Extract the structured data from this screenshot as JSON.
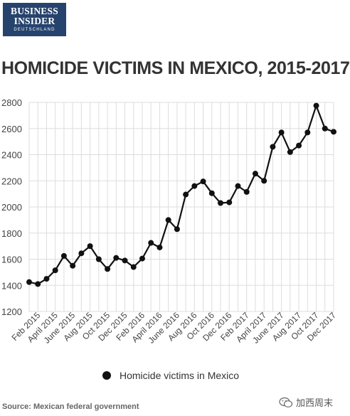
{
  "logo": {
    "line1": "BUSINESS",
    "line2": "INSIDER",
    "line3": "DEUTSCHLAND"
  },
  "title": "HOMICIDE VICTIMS IN MEXICO, 2015-2017",
  "source": "Source: Mexican federal government",
  "watermark": {
    "label": "加西周末"
  },
  "colors": {
    "logo_bg": "#26436d",
    "series": "#111111",
    "grid": "#dddddd",
    "text": "#333333"
  },
  "chart_data": {
    "type": "line",
    "title": "HOMICIDE VICTIMS IN MEXICO, 2015-2017",
    "xlabel": "",
    "ylabel": "",
    "ylim": [
      1200,
      2800
    ],
    "yticks": [
      1200,
      1400,
      1600,
      1800,
      2000,
      2200,
      2400,
      2600,
      2800
    ],
    "xtick_labels": [
      "Feb 2015",
      "April 2015",
      "June 2015",
      "Aug 2015",
      "Oct 2015",
      "Dec 2015",
      "Feb 2016",
      "April 2016",
      "June 2016",
      "Aug 2016",
      "Oct 2016",
      "Dec 2016",
      "Feb 2017",
      "April 2017",
      "June 2017",
      "Aug 2017",
      "Oct 2017",
      "Dec 2017"
    ],
    "x": [
      "Jan 2015",
      "Feb 2015",
      "Mar 2015",
      "Apr 2015",
      "May 2015",
      "Jun 2015",
      "Jul 2015",
      "Aug 2015",
      "Sep 2015",
      "Oct 2015",
      "Nov 2015",
      "Dec 2015",
      "Jan 2016",
      "Feb 2016",
      "Mar 2016",
      "Apr 2016",
      "May 2016",
      "Jun 2016",
      "Jul 2016",
      "Aug 2016",
      "Sep 2016",
      "Oct 2016",
      "Nov 2016",
      "Dec 2016",
      "Jan 2017",
      "Feb 2017",
      "Mar 2017",
      "Apr 2017",
      "May 2017",
      "Jun 2017",
      "Jul 2017",
      "Aug 2017",
      "Sep 2017",
      "Oct 2017",
      "Nov 2017",
      "Dec 2017"
    ],
    "grid": true,
    "legend": "bottom",
    "series": [
      {
        "name": "Homicide victims in Mexico",
        "values": [
          1425,
          1410,
          1450,
          1515,
          1625,
          1550,
          1645,
          1700,
          1600,
          1525,
          1610,
          1590,
          1540,
          1605,
          1725,
          1690,
          1900,
          1830,
          2095,
          2160,
          2195,
          2105,
          2030,
          2035,
          2160,
          2115,
          2255,
          2200,
          2460,
          2570,
          2420,
          2470,
          2570,
          2775,
          2600,
          2575
        ]
      }
    ]
  }
}
